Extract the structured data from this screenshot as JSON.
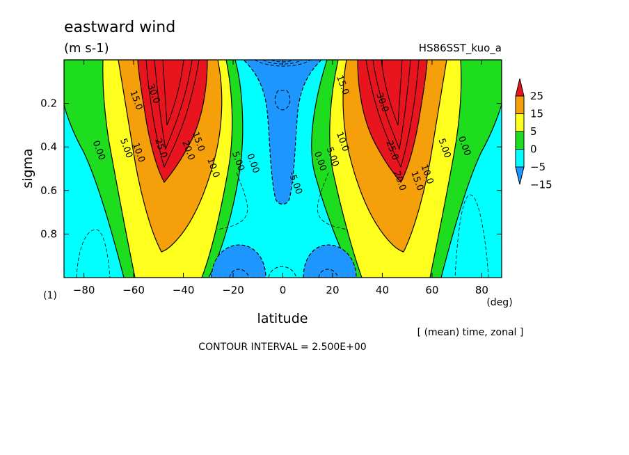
{
  "chart_data": {
    "type": "heatmap",
    "title": "eastward wind",
    "units": "(m s-1)",
    "dataset_label": "HS86SST_kuo_a",
    "xlabel": "latitude",
    "ylabel": "sigma",
    "x_unit": "(deg)",
    "y_unit": "(1)",
    "xlim": [
      -88,
      88
    ],
    "ylim": [
      0.0,
      1.0
    ],
    "x_ticks": [
      -80,
      -60,
      -40,
      -20,
      0,
      20,
      40,
      60,
      80
    ],
    "x_tick_labels": [
      "−80",
      "−60",
      "−40",
      "−20",
      "0",
      "20",
      "40",
      "60",
      "80"
    ],
    "y_ticks": [
      0.2,
      0.4,
      0.6,
      0.8
    ],
    "y_tick_labels": [
      "0.2",
      "0.4",
      "0.6",
      "0.8"
    ],
    "averaging": "[ (mean) time, zonal ]",
    "contour_interval": "CONTOUR INTERVAL = 2.500E+00",
    "colorbar": {
      "levels": [
        25,
        15,
        5,
        0,
        -5,
        -15
      ],
      "labels": [
        "25",
        "15",
        "5",
        "0",
        "−5",
        "−15"
      ],
      "colors": [
        "#e8141e",
        "#f5a00a",
        "#ffff1e",
        "#1edc1e",
        "#00ffff",
        "#1e96ff"
      ]
    },
    "contour_labels": [
      {
        "lat": -75,
        "sigma": 0.42,
        "text": "0.00"
      },
      {
        "lat": -64,
        "sigma": 0.41,
        "text": "5.00"
      },
      {
        "lat": -59,
        "sigma": 0.43,
        "text": "10.0"
      },
      {
        "lat": -60,
        "sigma": 0.19,
        "text": "15.0"
      },
      {
        "lat": -53,
        "sigma": 0.16,
        "text": "30.0"
      },
      {
        "lat": -50,
        "sigma": 0.41,
        "text": "25.0"
      },
      {
        "lat": -39,
        "sigma": 0.42,
        "text": "20.0"
      },
      {
        "lat": -35,
        "sigma": 0.38,
        "text": "15.0"
      },
      {
        "lat": -29,
        "sigma": 0.5,
        "text": "10.0"
      },
      {
        "lat": -19,
        "sigma": 0.47,
        "text": "5.00"
      },
      {
        "lat": -13,
        "sigma": 0.48,
        "text": "0.00"
      },
      {
        "lat": 4,
        "sigma": 0.57,
        "text": "-5.00"
      },
      {
        "lat": 14,
        "sigma": 0.47,
        "text": "0.00"
      },
      {
        "lat": 19,
        "sigma": 0.45,
        "text": "5.00"
      },
      {
        "lat": 23,
        "sigma": 0.38,
        "text": "10.0"
      },
      {
        "lat": 23,
        "sigma": 0.12,
        "text": "15.0"
      },
      {
        "lat": 39,
        "sigma": 0.2,
        "text": "30.0"
      },
      {
        "lat": 43,
        "sigma": 0.42,
        "text": "25.0"
      },
      {
        "lat": 46,
        "sigma": 0.56,
        "text": "20.0"
      },
      {
        "lat": 53,
        "sigma": 0.56,
        "text": "15.0"
      },
      {
        "lat": 57,
        "sigma": 0.53,
        "text": "10.0"
      },
      {
        "lat": 64,
        "sigma": 0.41,
        "text": "5.00"
      },
      {
        "lat": 72,
        "sigma": 0.4,
        "text": "0.00"
      }
    ]
  }
}
